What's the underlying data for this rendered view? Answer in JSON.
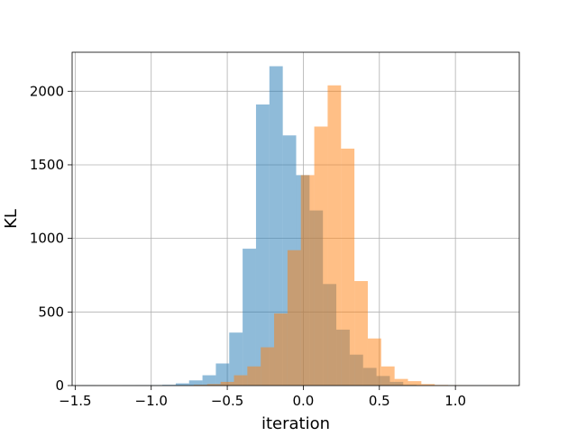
{
  "chart_data": {
    "type": "histogram",
    "title": "",
    "xlabel": "iteration",
    "ylabel": "KL",
    "xlim": [
      -1.52,
      1.42
    ],
    "ylim": [
      0,
      2265
    ],
    "x_ticks": [
      -1.5,
      -1.0,
      -0.5,
      0.0,
      0.5,
      1.0
    ],
    "x_tick_labels": [
      "−1.5",
      "−1.0",
      "−0.5",
      "0.0",
      "0.5",
      "1.0"
    ],
    "y_ticks": [
      0,
      500,
      1000,
      1500,
      2000
    ],
    "y_tick_labels": [
      "0",
      "500",
      "1000",
      "1500",
      "2000"
    ],
    "grid": true,
    "legend": "none",
    "bin_width": 0.088,
    "series": [
      {
        "color": "#1f77b4",
        "alpha": 0.5,
        "bins_start": [
          -1.455,
          -1.367,
          -1.279,
          -1.191,
          -1.103,
          -1.015,
          -0.927,
          -0.839,
          -0.751,
          -0.663,
          -0.575,
          -0.487,
          -0.399,
          -0.311,
          -0.223,
          -0.135,
          -0.047,
          0.041,
          0.129,
          0.217,
          0.305,
          0.393,
          0.481,
          0.569,
          0.657
        ],
        "values": [
          1,
          0,
          0,
          1,
          2,
          3,
          5,
          15,
          35,
          70,
          150,
          360,
          930,
          1910,
          2170,
          1700,
          1430,
          1190,
          690,
          380,
          210,
          120,
          65,
          25,
          5
        ]
      },
      {
        "color": "#ff7f0e",
        "alpha": 0.5,
        "bins_start": [
          -0.72,
          -0.632,
          -0.544,
          -0.456,
          -0.368,
          -0.28,
          -0.192,
          -0.104,
          -0.016,
          0.072,
          0.16,
          0.248,
          0.336,
          0.424,
          0.512,
          0.6,
          0.688,
          0.776,
          0.864,
          0.952,
          1.04,
          1.128,
          1.216
        ],
        "values": [
          5,
          10,
          25,
          70,
          130,
          260,
          490,
          920,
          1430,
          1760,
          2040,
          1610,
          710,
          320,
          130,
          45,
          30,
          10,
          4,
          2,
          1,
          0,
          1
        ]
      }
    ]
  }
}
